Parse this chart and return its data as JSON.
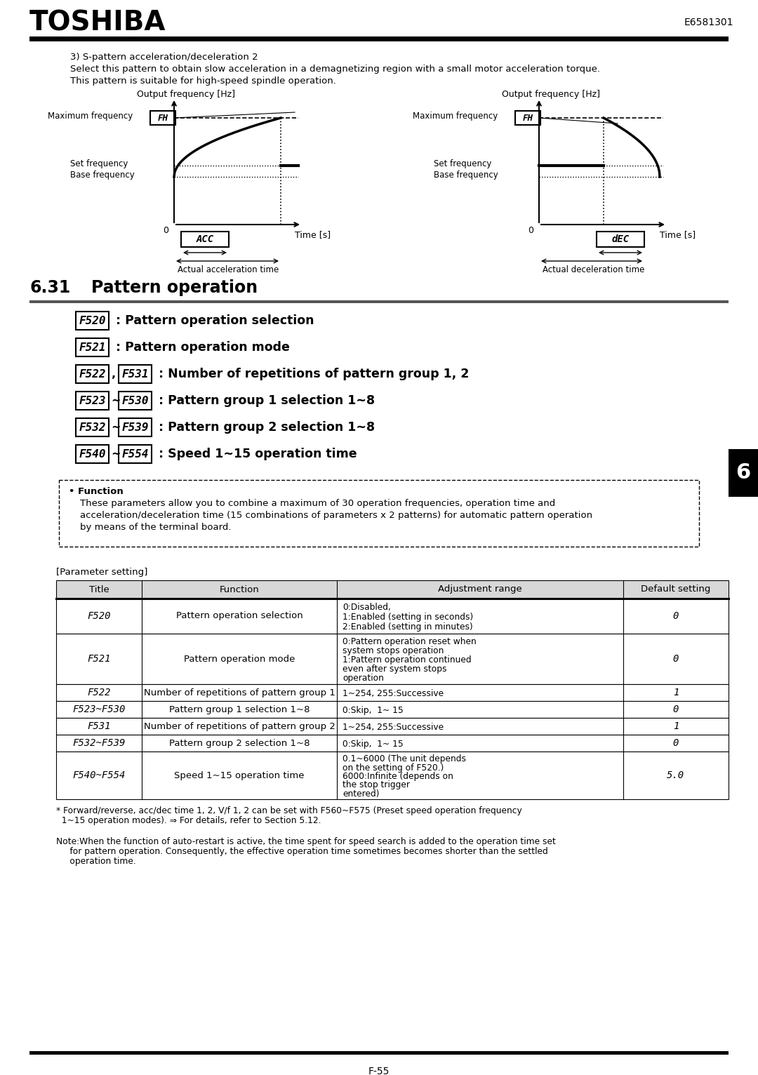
{
  "title": "TOSHIBA",
  "doc_number": "E6581301",
  "page_number": "F-55",
  "section_intro": "3) S-pattern acceleration/deceleration 2",
  "section_text1": "Select this pattern to obtain slow acceleration in a demagnetizing region with a small motor acceleration torque.",
  "section_text2": "This pattern is suitable for high-speed spindle operation.",
  "section_number": "6.31",
  "section_title": "Pattern operation",
  "function_title": "• Function",
  "function_text1": "These parameters allow you to combine a maximum of 30 operation frequencies, operation time and",
  "function_text2": "acceleration/deceleration time (15 combinations of parameters x 2 patterns) for automatic pattern operation",
  "function_text3": "by means of the terminal board.",
  "param_label": "[Parameter setting]",
  "table_headers": [
    "Title",
    "Function",
    "Adjustment range",
    "Default setting"
  ],
  "table_rows": [
    {
      "title": "F520",
      "function": "Pattern operation selection",
      "adj_lines": [
        "0:Disabled,",
        "1:Enabled (setting in seconds)",
        "2:Enabled (setting in minutes)"
      ],
      "default": "0",
      "title_italic": true
    },
    {
      "title": "F521",
      "function": "Pattern operation mode",
      "adj_lines": [
        "0:Pattern operation reset when",
        "system stops operation",
        "1:Pattern operation continued",
        "even after system stops",
        "operation"
      ],
      "default": "0",
      "title_italic": true
    },
    {
      "title": "F522",
      "function": "Number of repetitions of pattern group 1",
      "adj_lines": [
        "1~254, 255:Successive"
      ],
      "default": "1",
      "title_italic": true
    },
    {
      "title": "F523~F530",
      "function": "Pattern group 1 selection 1~8",
      "adj_lines": [
        "0:Skip,  1~ 15"
      ],
      "default": "0",
      "title_italic": true
    },
    {
      "title": "F531",
      "function": "Number of repetitions of pattern group 2",
      "adj_lines": [
        "1~254, 255:Successive"
      ],
      "default": "1",
      "title_italic": true
    },
    {
      "title": "F532~F539",
      "function": "Pattern group 2 selection 1~8",
      "adj_lines": [
        "0:Skip,  1~ 15"
      ],
      "default": "0",
      "title_italic": true
    },
    {
      "title": "F540~F554",
      "function": "Speed 1~15 operation time",
      "adj_lines": [
        "0.1~6000 (The unit depends",
        "on the setting of F520.)",
        "6000:Infinite (depends on",
        "the stop trigger",
        "entered)"
      ],
      "default": "5.0",
      "title_italic": true
    }
  ],
  "footnote1": "* Forward/reverse, acc/dec time 1, 2, V/f 1, 2 can be set with F560~F575 (Preset speed operation frequency",
  "footnote2": "  1~15 operation modes). ⇒ For details, refer to Section 5.12.",
  "footnote3": "Note:When the function of auto-restart is active, the time spent for speed search is added to the operation time set",
  "footnote4": "     for pattern operation. Consequently, the effective operation time sometimes becomes shorter than the settled",
  "footnote5": "     operation time.",
  "bg_color": "#ffffff"
}
